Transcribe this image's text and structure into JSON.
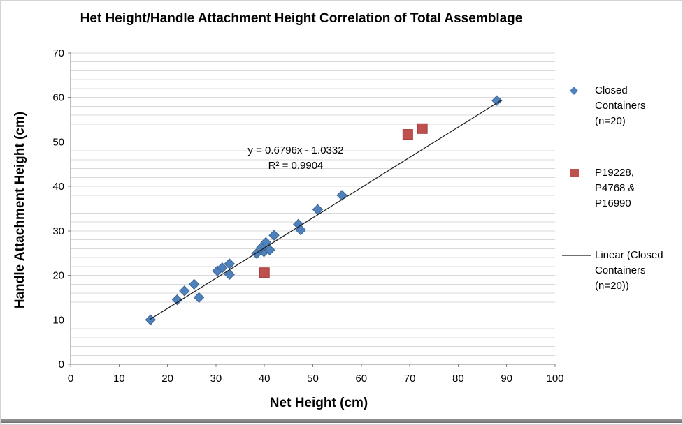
{
  "chart_data": {
    "type": "scatter",
    "title": "Het Height/Handle Attachment Height Correlation of Total Assemblage",
    "xlabel": "Net Height (cm)",
    "ylabel": "Handle Attachment Height (cm)",
    "xlim": [
      0,
      100
    ],
    "ylim": [
      0,
      70
    ],
    "x_ticks": [
      0,
      10,
      20,
      30,
      40,
      50,
      60,
      70,
      80,
      90,
      100
    ],
    "y_ticks": [
      0,
      10,
      20,
      30,
      40,
      50,
      60,
      70
    ],
    "y_minor_gridline_step": 2,
    "grid": "horizontal-only",
    "legend_position": "right",
    "series": [
      {
        "name": "Closed Containers (n=20)",
        "marker": "diamond",
        "color": "#4F81BD",
        "edge_color": "#3A6294",
        "points": [
          [
            16.5,
            10
          ],
          [
            22,
            14.5
          ],
          [
            23.5,
            16.5
          ],
          [
            25.5,
            18
          ],
          [
            26.5,
            15
          ],
          [
            30.3,
            21
          ],
          [
            31.3,
            21.7
          ],
          [
            32.8,
            22.6
          ],
          [
            32.8,
            20.2
          ],
          [
            38.4,
            24.9
          ],
          [
            39.9,
            25.3
          ],
          [
            39.4,
            26.3
          ],
          [
            40.3,
            27.4
          ],
          [
            41.1,
            25.7
          ],
          [
            42,
            29
          ],
          [
            47,
            31.5
          ],
          [
            47.5,
            30.2
          ],
          [
            51,
            34.8
          ],
          [
            56,
            38
          ],
          [
            88,
            59.3
          ]
        ]
      },
      {
        "name": "P19228, P4768 & P16990",
        "marker": "square",
        "color": "#C0504D",
        "edge_color": "#9E3D3B",
        "points": [
          [
            40,
            20.6
          ],
          [
            69.6,
            51.7
          ],
          [
            72.6,
            53
          ]
        ]
      }
    ],
    "trendline": {
      "name": "Linear (Closed Containers (n=20))",
      "slope": 0.6796,
      "intercept": -1.0332,
      "r_squared": 0.9904,
      "x_start": 16.3,
      "x_end": 89,
      "color": "#1a1a1a"
    }
  },
  "annotation": {
    "line1": "y = 0.6796x - 1.0332",
    "line2": "R² = 0.9904"
  },
  "legend": {
    "items": [
      {
        "id": "closed-containers",
        "marker": "diamond",
        "color": "#4F81BD",
        "lines": [
          "Closed",
          "Containers",
          "(n=20)"
        ]
      },
      {
        "id": "special-vessels",
        "marker": "square",
        "color": "#C0504D",
        "lines": [
          "P19228,",
          "P4768 &",
          "P16990"
        ]
      },
      {
        "id": "linear-trendline",
        "marker": "line",
        "color": "#1a1a1a",
        "lines": [
          "Linear (Closed",
          "Containers",
          "(n=20))"
        ]
      }
    ]
  },
  "colors": {
    "gridline": "#D9D9D9",
    "axis": "#808080",
    "tick_text": "#000000",
    "background": "#FFFFFF",
    "border": "#D3D3D3",
    "bottom_bar": "#7F7F7F"
  }
}
